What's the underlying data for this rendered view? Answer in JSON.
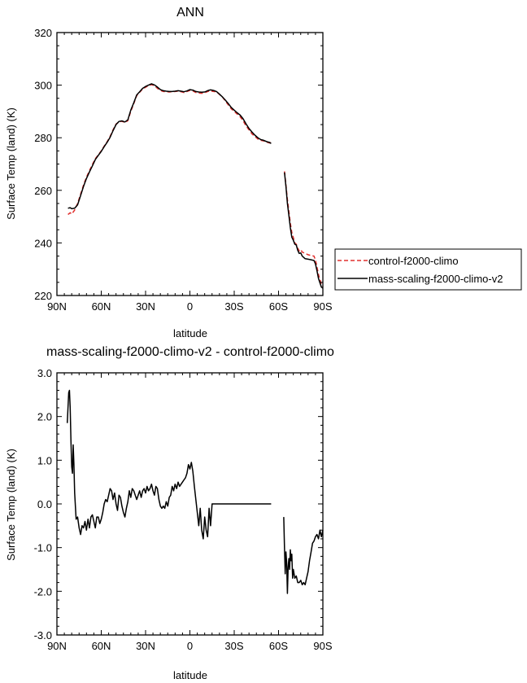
{
  "chart_data": [
    {
      "type": "line",
      "title": "ANN",
      "xlabel": "latitude",
      "ylabel": "Surface Temp (land) (K)",
      "x_tick_labels": [
        "90N",
        "60N",
        "30N",
        "0",
        "30S",
        "60S",
        "90S"
      ],
      "xlim": [
        90,
        -90
      ],
      "ylim": [
        220,
        320
      ],
      "y_ticks": [
        220,
        240,
        260,
        280,
        300,
        320
      ],
      "y_tick_labels": [
        "220",
        "240",
        "260",
        "280",
        "300",
        "320"
      ],
      "legend_position": "right",
      "series": [
        {
          "name": "control-f2000-climo",
          "color": "#e0302e",
          "dash": "dashed",
          "x": [
            82.5,
            81,
            80,
            78,
            76,
            74,
            72,
            70,
            68,
            66,
            64,
            62,
            60,
            58,
            56,
            54,
            52,
            50,
            48,
            46,
            44,
            42,
            40,
            38,
            36,
            34,
            32,
            30,
            28,
            26,
            24,
            22,
            20,
            18,
            16,
            14,
            12,
            10,
            8,
            6,
            4,
            2,
            0,
            -2,
            -4,
            -6,
            -8,
            -10,
            -12,
            -14,
            -16,
            -18,
            -20,
            -22,
            -24,
            -26,
            -28,
            -30,
            -32,
            -34,
            -36,
            -38,
            -40,
            -42,
            -44,
            -46,
            -48,
            -50,
            -52,
            -54,
            -55
          ],
          "y": [
            250.8,
            251.5,
            251,
            252.5,
            255,
            258.5,
            262,
            265,
            267.5,
            269.8,
            272,
            273.5,
            275,
            276.8,
            278.5,
            280.5,
            283,
            285.2,
            286,
            286.3,
            285.8,
            286.5,
            290,
            293,
            296,
            297.3,
            298.5,
            299.2,
            299.8,
            300.2,
            299.8,
            298.8,
            298,
            297.6,
            297.5,
            297.4,
            297.5,
            297.6,
            297.7,
            297.5,
            297.2,
            297.6,
            298,
            297.8,
            297.2,
            297.0,
            296.9,
            297.1,
            297.6,
            297.8,
            297.6,
            297.5,
            296.5,
            295.5,
            294,
            292.5,
            291,
            290,
            289,
            288,
            286.5,
            284.5,
            283,
            281.5,
            280.5,
            279.5,
            279,
            278.8,
            278.3,
            278,
            278.3
          ]
        },
        {
          "name": "mass-scaling-f2000-climo-v2",
          "color": "#000000",
          "dash": "solid",
          "x": [
            82.5,
            81,
            80,
            78,
            76,
            74,
            72,
            70,
            68,
            66,
            64,
            62,
            60,
            58,
            56,
            54,
            52,
            50,
            48,
            46,
            44,
            42,
            40,
            38,
            36,
            34,
            32,
            30,
            28,
            26,
            24,
            22,
            20,
            18,
            16,
            14,
            12,
            10,
            8,
            6,
            4,
            2,
            0,
            -2,
            -4,
            -6,
            -8,
            -10,
            -12,
            -14,
            -16,
            -18,
            -20,
            -22,
            -24,
            -26,
            -28,
            -30,
            -32,
            -34,
            -36,
            -38,
            -40,
            -42,
            -44,
            -46,
            -48,
            -50,
            -52,
            -54,
            -55
          ],
          "y": [
            253.2,
            253.4,
            253,
            253.2,
            254.5,
            258,
            261.5,
            264.5,
            267,
            269.3,
            271.7,
            273.3,
            274.8,
            276.6,
            278.3,
            280.2,
            282.7,
            285,
            286.2,
            286.4,
            286,
            286.8,
            290.5,
            293.3,
            296.3,
            297.5,
            298.8,
            299.5,
            300,
            300.5,
            300.1,
            299.3,
            298.3,
            297.9,
            297.7,
            297.6,
            297.6,
            297.7,
            297.9,
            297.7,
            297.5,
            297.8,
            298.3,
            298.1,
            297.6,
            297.4,
            297.3,
            297.4,
            297.9,
            298.2,
            298,
            297.6,
            296.6,
            295.5,
            294.3,
            293,
            291.5,
            290.5,
            289.5,
            288.6,
            287.2,
            285.3,
            283.5,
            282.2,
            281,
            280,
            279.3,
            279,
            278.5,
            278.2,
            277.8
          ]
        },
        {
          "name": "control-f2000-climo",
          "color": "#e0302e",
          "dash": "dashed",
          "x": [
            -64,
            -65,
            -66,
            -67,
            -68,
            -69,
            -70,
            -71,
            -72,
            -73,
            -74,
            -75,
            -76,
            -77,
            -78,
            -80,
            -82,
            -84,
            -85,
            -86,
            -87,
            -88,
            -89,
            -90
          ],
          "y": [
            267.2,
            262,
            256.5,
            252,
            247.5,
            244,
            242,
            240,
            239.5,
            238,
            237,
            237.5,
            236.5,
            236.3,
            236,
            235.5,
            235.2,
            235,
            233.5,
            231,
            228,
            226,
            224.5,
            223.5
          ]
        },
        {
          "name": "mass-scaling-f2000-climo-v2",
          "color": "#000000",
          "dash": "solid",
          "x": [
            -64,
            -65,
            -66,
            -67,
            -68,
            -69,
            -70,
            -71,
            -72,
            -73,
            -74,
            -75,
            -76,
            -77,
            -78,
            -80,
            -82,
            -84,
            -85,
            -86,
            -87,
            -88,
            -89,
            -90
          ],
          "y": [
            266.8,
            261.5,
            255,
            250.5,
            245.8,
            242.2,
            241,
            239.5,
            239.2,
            237.2,
            236,
            236.2,
            235,
            234.5,
            234,
            233.8,
            233.6,
            233.3,
            232,
            229.5,
            226.5,
            224.8,
            223.2,
            222.8
          ]
        }
      ]
    },
    {
      "type": "line",
      "title": "mass-scaling-f2000-climo-v2 - control-f2000-climo",
      "xlabel": "latitude",
      "ylabel": "Surface Temp (land) (K)",
      "x_tick_labels": [
        "90N",
        "60N",
        "30N",
        "0",
        "30S",
        "60S",
        "90S"
      ],
      "xlim": [
        90,
        -90
      ],
      "ylim": [
        -3,
        3
      ],
      "y_ticks": [
        -3,
        -2,
        -1,
        0,
        1,
        2,
        3
      ],
      "y_tick_labels": [
        "-3.0",
        "-2.0",
        "-1.0",
        "0.0",
        "1.0",
        "2.0",
        "3.0"
      ],
      "series": [
        {
          "color": "#000000",
          "x": [
            83,
            82,
            81.5,
            81,
            80.5,
            80,
            79.5,
            79,
            78.5,
            78,
            77,
            76,
            75,
            74,
            73,
            72,
            71,
            70,
            69,
            68,
            67,
            66,
            65,
            64,
            63,
            62,
            61,
            60,
            59,
            58,
            57,
            56,
            55,
            54,
            53,
            52,
            51,
            50,
            49,
            48,
            47,
            46,
            45,
            44,
            43,
            42,
            41,
            40,
            39,
            38,
            37,
            36,
            35,
            34,
            33,
            32,
            31,
            30,
            29,
            28,
            27,
            26,
            25,
            24,
            23,
            22,
            21,
            20,
            19,
            18,
            17,
            16,
            15,
            14,
            13,
            12,
            11,
            10,
            9,
            8,
            7,
            6,
            5,
            4,
            3,
            2,
            1,
            0,
            -1,
            -2,
            -3,
            -4,
            -5,
            -6,
            -7,
            -8,
            -9,
            -10,
            -11,
            -12,
            -13,
            -14,
            -15,
            -16,
            -17,
            -18,
            -19,
            -20,
            -21,
            -22,
            -23,
            -24,
            -25,
            -26,
            -27,
            -28,
            -29,
            -30,
            -31,
            -32,
            -33,
            -34,
            -35,
            -36,
            -37,
            -38,
            -39,
            -40,
            -41,
            -42,
            -43,
            -44,
            -45,
            -46,
            -47,
            -48,
            -49,
            -50,
            -51,
            -52,
            -53,
            -54,
            -55
          ],
          "y": [
            1.85,
            2.55,
            2.6,
            2.2,
            1.4,
            0.85,
            0.7,
            1.35,
            0.9,
            0.25,
            -0.35,
            -0.3,
            -0.55,
            -0.7,
            -0.5,
            -0.55,
            -0.4,
            -0.6,
            -0.35,
            -0.55,
            -0.3,
            -0.25,
            -0.4,
            -0.55,
            -0.3,
            -0.3,
            -0.45,
            -0.35,
            -0.2,
            0.0,
            0.1,
            0.05,
            0.2,
            0.35,
            0.3,
            0.1,
            0.25,
            0.0,
            -0.15,
            0.2,
            0.15,
            -0.05,
            -0.2,
            -0.3,
            -0.1,
            0.05,
            0.3,
            0.15,
            0.35,
            0.3,
            0.2,
            0.1,
            0.2,
            0.3,
            0.15,
            0.3,
            0.35,
            0.25,
            0.4,
            0.3,
            0.35,
            0.45,
            0.3,
            0.2,
            0.4,
            0.35,
            0.1,
            -0.05,
            -0.1,
            -0.05,
            -0.1,
            0.05,
            -0.05,
            0.15,
            0.2,
            0.4,
            0.3,
            0.45,
            0.35,
            0.5,
            0.4,
            0.45,
            0.5,
            0.55,
            0.6,
            0.7,
            0.9,
            0.8,
            0.95,
            0.75,
            0.4,
            0.1,
            -0.2,
            -0.5,
            -0.1,
            -0.6,
            -0.8,
            -0.3,
            -0.6,
            -0.75,
            -0.1,
            -0.5,
            0,
            0,
            0,
            0,
            0,
            0,
            0,
            0,
            0,
            0,
            0,
            0,
            0,
            0,
            0,
            0,
            0,
            0,
            0,
            0,
            0,
            0,
            0,
            0,
            0,
            0,
            0,
            0,
            0,
            0,
            0,
            0,
            0,
            0,
            0,
            0,
            0,
            0,
            0,
            0,
            0
          ],
          "note_shape": "northern segment"
        },
        {
          "color": "#000000",
          "x": [
            -63.5,
            -64,
            -64.5,
            -65,
            -65.5,
            -66,
            -66.5,
            -67,
            -67.5,
            -68,
            -68.5,
            -69,
            -69.5,
            -70,
            -71,
            -72,
            -73,
            -74,
            -75,
            -76,
            -77,
            -78,
            -79,
            -80,
            -81,
            -82,
            -83,
            -84,
            -85,
            -86,
            -87,
            -88,
            -89,
            -90
          ],
          "y": [
            -0.3,
            -1.0,
            -1.6,
            -1.1,
            -1.35,
            -2.05,
            -1.45,
            -1.25,
            -1.5,
            -1.05,
            -1.3,
            -1.15,
            -1.7,
            -1.5,
            -1.7,
            -1.65,
            -1.8,
            -1.8,
            -1.75,
            -1.85,
            -1.8,
            -1.85,
            -1.7,
            -1.55,
            -1.3,
            -1.1,
            -0.9,
            -0.85,
            -0.75,
            -0.7,
            -0.8,
            -0.6,
            -0.75,
            -0.6
          ]
        }
      ]
    }
  ]
}
